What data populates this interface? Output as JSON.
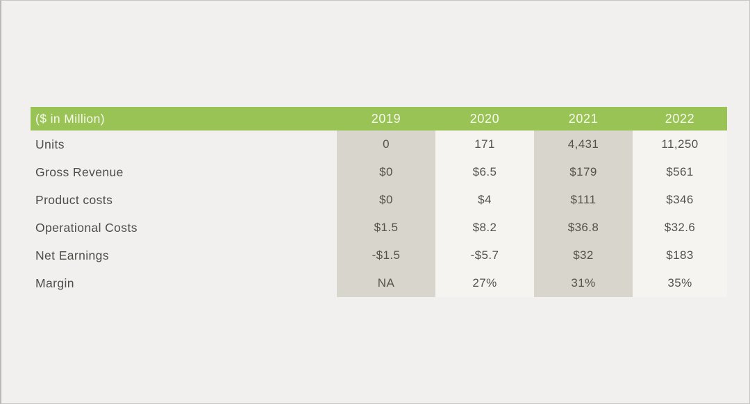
{
  "chart_data": {
    "type": "table",
    "unit_label": "($ in Million)",
    "columns": [
      "2019",
      "2020",
      "2021",
      "2022"
    ],
    "rows": [
      {
        "label": "Units",
        "values": [
          "0",
          "171",
          "4,431",
          "11,250"
        ]
      },
      {
        "label": "Gross Revenue",
        "values": [
          "$0",
          "$6.5",
          "$179",
          "$561"
        ]
      },
      {
        "label": "Product costs",
        "values": [
          "$0",
          "$4",
          "$111",
          "$346"
        ]
      },
      {
        "label": "Operational Costs",
        "values": [
          "$1.5",
          "$8.2",
          "$36.8",
          "$32.6"
        ]
      },
      {
        "label": "Net Earnings",
        "values": [
          "-$1.5",
          "-$5.7",
          "$32",
          "$183"
        ]
      },
      {
        "label": "Margin",
        "values": [
          "NA",
          "27%",
          "31%",
          "35%"
        ]
      }
    ],
    "shaded_column_indices": [
      0,
      2
    ],
    "layout_hints": {
      "legend": "none",
      "grid": "off",
      "column_shading": "alternating on 2019 and 2021 columns"
    }
  },
  "colors": {
    "header_bg": "#9ac356",
    "header_text": "#f6f9ec",
    "shaded_column_bg": "#d8d5cc",
    "light_column_bg": "#f5f4f1",
    "page_bg": "#f1f0ee",
    "frame_border": "#c6c6c4",
    "label_text": "#504c48",
    "value_text": "#55514b"
  }
}
